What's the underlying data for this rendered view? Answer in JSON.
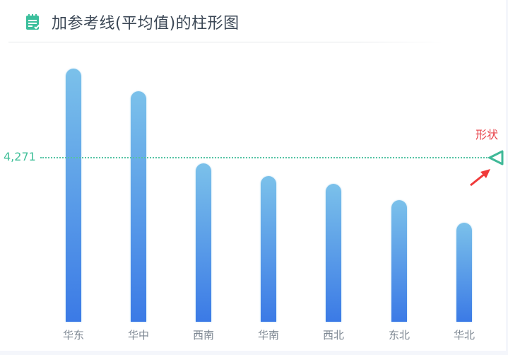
{
  "header": {
    "icon": "notepad-check-icon",
    "title": "加参考线(平均值)的柱形图"
  },
  "colors": {
    "bar_top": "#7bc1ea",
    "bar_bottom": "#3b7ae6",
    "average_line": "#55c3a4",
    "annotation": "#e8434a",
    "title": "#3a4654",
    "axis_label": "#7d8792"
  },
  "annotation": {
    "text": "形状",
    "arrow_icon": "red-arrow-icon"
  },
  "average": {
    "label": "4,271"
  },
  "chart_data": {
    "type": "bar",
    "title": "加参考线(平均值)的柱形图",
    "categories": [
      "华东",
      "华中",
      "西南",
      "华南",
      "西北",
      "东北",
      "华北"
    ],
    "values": [
      6602,
      6012,
      4131,
      3799,
      3596,
      3172,
      2582
    ],
    "xlabel": "",
    "ylabel": "",
    "ylim": [
      0,
      6602
    ],
    "grid": false,
    "legend": "none",
    "reference_lines": [
      {
        "type": "average",
        "value": 4271,
        "label": "4,271",
        "style": "dotted",
        "color": "#55c3a4",
        "end_marker": "triangle"
      }
    ],
    "annotations": [
      {
        "text": "形状",
        "target": "average line end marker",
        "color": "#e8434a"
      }
    ]
  }
}
